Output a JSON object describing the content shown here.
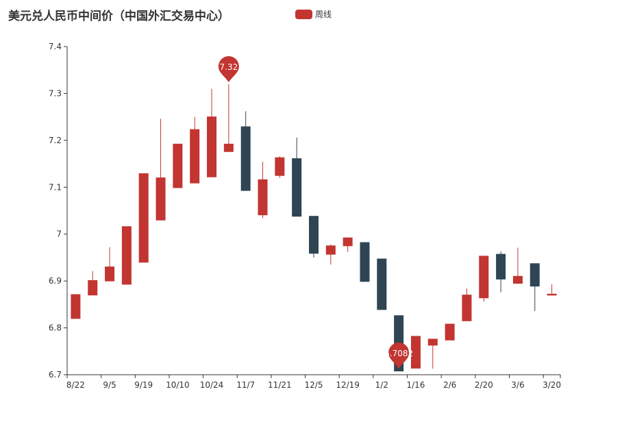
{
  "title": "美元兑人民币中间价（中国外汇交易中心）",
  "legend": {
    "label": "周线",
    "color": "#c23531"
  },
  "colors": {
    "up": "#c23531",
    "down": "#2f4554",
    "axis": "#333333"
  },
  "chart_data": {
    "type": "candlestick",
    "title": "美元兑人民币中间价（中国外汇交易中心）",
    "series_name": "周线",
    "ylim": [
      6.7,
      7.4
    ],
    "y_ticks": [
      "6.7",
      "6.8",
      "6.9",
      "7",
      "7.1",
      "7.2",
      "7.3",
      "7.4"
    ],
    "x_ticks": [
      "8/22",
      "9/5",
      "9/19",
      "10/10",
      "10/24",
      "11/7",
      "11/21",
      "12/5",
      "12/19",
      "1/2",
      "1/16",
      "2/6",
      "2/20",
      "3/6",
      "3/20"
    ],
    "candles": [
      {
        "open": 6.82,
        "close": 6.871,
        "low": 6.82,
        "high": 6.871
      },
      {
        "open": 6.87,
        "close": 6.901,
        "low": 6.87,
        "high": 6.921
      },
      {
        "open": 6.9,
        "close": 6.93,
        "low": 6.9,
        "high": 6.972
      },
      {
        "open": 6.893,
        "close": 7.016,
        "low": 6.893,
        "high": 7.016
      },
      {
        "open": 6.94,
        "close": 7.129,
        "low": 6.94,
        "high": 7.129
      },
      {
        "open": 7.03,
        "close": 7.12,
        "low": 7.03,
        "high": 7.246
      },
      {
        "open": 7.099,
        "close": 7.192,
        "low": 7.099,
        "high": 7.192
      },
      {
        "open": 7.109,
        "close": 7.223,
        "low": 7.109,
        "high": 7.25
      },
      {
        "open": 7.122,
        "close": 7.25,
        "low": 7.122,
        "high": 7.31
      },
      {
        "open": 7.176,
        "close": 7.192,
        "low": 7.176,
        "high": 7.32
      },
      {
        "open": 7.229,
        "close": 7.093,
        "low": 7.093,
        "high": 7.262
      },
      {
        "open": 7.041,
        "close": 7.116,
        "low": 7.034,
        "high": 7.154
      },
      {
        "open": 7.125,
        "close": 7.163,
        "low": 7.12,
        "high": 7.166
      },
      {
        "open": 7.161,
        "close": 7.038,
        "low": 7.038,
        "high": 7.206
      },
      {
        "open": 7.038,
        "close": 6.959,
        "low": 6.95,
        "high": 7.038
      },
      {
        "open": 6.957,
        "close": 6.975,
        "low": 6.935,
        "high": 6.978
      },
      {
        "open": 6.975,
        "close": 6.992,
        "low": 6.962,
        "high": 6.992
      },
      {
        "open": 6.982,
        "close": 6.899,
        "low": 6.899,
        "high": 6.982
      },
      {
        "open": 6.947,
        "close": 6.839,
        "low": 6.839,
        "high": 6.947
      },
      {
        "open": 6.826,
        "close": 6.708,
        "low": 6.708,
        "high": 6.826
      },
      {
        "open": 6.714,
        "close": 6.782,
        "low": 6.714,
        "high": 6.782
      },
      {
        "open": 6.763,
        "close": 6.776,
        "low": 6.713,
        "high": 6.776
      },
      {
        "open": 6.774,
        "close": 6.808,
        "low": 6.774,
        "high": 6.808
      },
      {
        "open": 6.815,
        "close": 6.87,
        "low": 6.815,
        "high": 6.884
      },
      {
        "open": 6.864,
        "close": 6.953,
        "low": 6.856,
        "high": 6.953
      },
      {
        "open": 6.957,
        "close": 6.904,
        "low": 6.876,
        "high": 6.963
      },
      {
        "open": 6.895,
        "close": 6.91,
        "low": 6.895,
        "high": 6.971
      },
      {
        "open": 6.937,
        "close": 6.889,
        "low": 6.836,
        "high": 6.937
      },
      {
        "open": 6.87,
        "close": 6.872,
        "low": 6.87,
        "high": 6.893
      }
    ],
    "markers": [
      {
        "label": "7.32",
        "index": 9,
        "value": 7.32
      },
      {
        "label": "6.7082",
        "index": 19,
        "value": 6.7082
      }
    ],
    "grid": false
  }
}
